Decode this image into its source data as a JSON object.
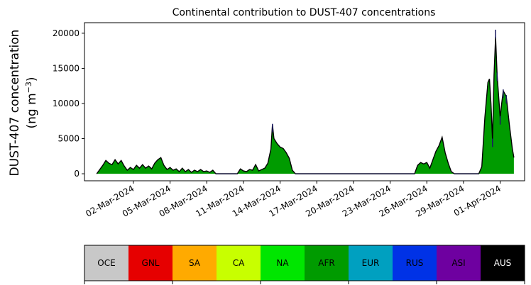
{
  "chart_data": {
    "type": "area",
    "title": "Continental contribution to DUST-407 concentrations",
    "ylabel_line1": "DUST-407 concentration",
    "ylabel_line2": "(ng m",
    "ylabel_sup": "−3",
    "ylabel_close": ")",
    "xlabel": "",
    "x_start": "2024-02-28",
    "xlim": [
      "2024-02-27",
      "2024-04-03"
    ],
    "ylim": [
      -1000,
      21500
    ],
    "yticks": [
      0,
      5000,
      10000,
      15000,
      20000
    ],
    "xtick_labels": [
      "02-Mar-2024",
      "05-Mar-2024",
      "08-Mar-2024",
      "11-Mar-2024",
      "14-Mar-2024",
      "17-Mar-2024",
      "20-Mar-2024",
      "23-Mar-2024",
      "26-Mar-2024",
      "29-Mar-2024",
      "01-Apr-2024"
    ],
    "xtick_dates": [
      "2024-03-02",
      "2024-03-05",
      "2024-03-08",
      "2024-03-11",
      "2024-03-14",
      "2024-03-17",
      "2024-03-20",
      "2024-03-23",
      "2024-03-26",
      "2024-03-29",
      "2024-04-01"
    ],
    "series": [
      {
        "name": "AFR",
        "color": "#009b00",
        "points": [
          [
            "2024-02-28T00:00",
            0
          ],
          [
            "2024-02-28T12:00",
            1200
          ],
          [
            "2024-02-28T18:00",
            1900
          ],
          [
            "2024-02-29T00:00",
            1500
          ],
          [
            "2024-02-29T06:00",
            1300
          ],
          [
            "2024-02-29T12:00",
            2000
          ],
          [
            "2024-02-29T18:00",
            1400
          ],
          [
            "2024-03-01T00:00",
            1900
          ],
          [
            "2024-03-01T06:00",
            1100
          ],
          [
            "2024-03-01T12:00",
            500
          ],
          [
            "2024-03-01T18:00",
            900
          ],
          [
            "2024-03-02T00:00",
            600
          ],
          [
            "2024-03-02T06:00",
            1200
          ],
          [
            "2024-03-02T12:00",
            800
          ],
          [
            "2024-03-02T18:00",
            1300
          ],
          [
            "2024-03-03T00:00",
            800
          ],
          [
            "2024-03-03T06:00",
            1100
          ],
          [
            "2024-03-03T12:00",
            700
          ],
          [
            "2024-03-03T18:00",
            1500
          ],
          [
            "2024-03-04T00:00",
            2000
          ],
          [
            "2024-03-04T06:00",
            2300
          ],
          [
            "2024-03-04T12:00",
            1200
          ],
          [
            "2024-03-04T18:00",
            600
          ],
          [
            "2024-03-05T00:00",
            900
          ],
          [
            "2024-03-05T06:00",
            500
          ],
          [
            "2024-03-05T12:00",
            700
          ],
          [
            "2024-03-05T18:00",
            300
          ],
          [
            "2024-03-06T00:00",
            800
          ],
          [
            "2024-03-06T06:00",
            300
          ],
          [
            "2024-03-06T12:00",
            600
          ],
          [
            "2024-03-06T18:00",
            200
          ],
          [
            "2024-03-07T00:00",
            500
          ],
          [
            "2024-03-07T06:00",
            300
          ],
          [
            "2024-03-07T12:00",
            600
          ],
          [
            "2024-03-07T18:00",
            300
          ],
          [
            "2024-03-08T00:00",
            400
          ],
          [
            "2024-03-08T06:00",
            200
          ],
          [
            "2024-03-08T12:00",
            500
          ],
          [
            "2024-03-08T18:00",
            0
          ],
          [
            "2024-03-09T00:00",
            0
          ],
          [
            "2024-03-10T12:00",
            0
          ],
          [
            "2024-03-10T18:00",
            700
          ],
          [
            "2024-03-11T00:00",
            400
          ],
          [
            "2024-03-11T06:00",
            300
          ],
          [
            "2024-03-11T12:00",
            600
          ],
          [
            "2024-03-11T18:00",
            500
          ],
          [
            "2024-03-12T00:00",
            1300
          ],
          [
            "2024-03-12T06:00",
            400
          ],
          [
            "2024-03-12T12:00",
            600
          ],
          [
            "2024-03-12T18:00",
            800
          ],
          [
            "2024-03-13T00:00",
            1500
          ],
          [
            "2024-03-13T06:00",
            3500
          ],
          [
            "2024-03-13T09:00",
            7000
          ],
          [
            "2024-03-13T12:00",
            5000
          ],
          [
            "2024-03-13T18:00",
            4300
          ],
          [
            "2024-03-14T00:00",
            3800
          ],
          [
            "2024-03-14T06:00",
            3600
          ],
          [
            "2024-03-14T12:00",
            3000
          ],
          [
            "2024-03-14T18:00",
            2200
          ],
          [
            "2024-03-15T00:00",
            500
          ],
          [
            "2024-03-15T06:00",
            0
          ],
          [
            "2024-03-25T00:00",
            0
          ],
          [
            "2024-03-25T06:00",
            1200
          ],
          [
            "2024-03-25T12:00",
            1600
          ],
          [
            "2024-03-25T18:00",
            1400
          ],
          [
            "2024-03-26T00:00",
            1600
          ],
          [
            "2024-03-26T06:00",
            800
          ],
          [
            "2024-03-26T12:00",
            2000
          ],
          [
            "2024-03-26T18:00",
            3200
          ],
          [
            "2024-03-27T00:00",
            4000
          ],
          [
            "2024-03-27T06:00",
            5200
          ],
          [
            "2024-03-27T12:00",
            3000
          ],
          [
            "2024-03-27T18:00",
            1500
          ],
          [
            "2024-03-28T00:00",
            300
          ],
          [
            "2024-03-28T06:00",
            0
          ],
          [
            "2024-03-30T06:00",
            0
          ],
          [
            "2024-03-30T12:00",
            1000
          ],
          [
            "2024-03-30T18:00",
            8000
          ],
          [
            "2024-03-31T00:00",
            13000
          ],
          [
            "2024-03-31T03:00",
            13500
          ],
          [
            "2024-03-31T06:00",
            10000
          ],
          [
            "2024-03-31T09:00",
            4800
          ],
          [
            "2024-03-31T12:00",
            14000
          ],
          [
            "2024-03-31T15:00",
            19500
          ],
          [
            "2024-03-31T18:00",
            14000
          ],
          [
            "2024-04-01T00:00",
            8000
          ],
          [
            "2024-04-01T03:00",
            10000
          ],
          [
            "2024-04-01T06:00",
            11800
          ],
          [
            "2024-04-01T12:00",
            11000
          ],
          [
            "2024-04-01T18:00",
            7000
          ],
          [
            "2024-04-02T00:00",
            3500
          ],
          [
            "2024-04-02T03:00",
            2300
          ]
        ]
      },
      {
        "name": "EUR",
        "color": "#00a0c0",
        "points": [
          [
            "2024-03-13T09:00",
            7100
          ],
          [
            "2024-03-31T09:00",
            5000
          ],
          [
            "2024-03-31T15:00",
            20500
          ],
          [
            "2024-03-31T18:00",
            14400
          ],
          [
            "2024-04-01T00:00",
            8200
          ],
          [
            "2024-04-01T06:00",
            12000
          ],
          [
            "2024-04-01T12:00",
            11200
          ]
        ]
      }
    ],
    "legend": [
      {
        "label": "OCE",
        "bg": "#c8c8c8",
        "fg": "#000000"
      },
      {
        "label": "GNL",
        "bg": "#e60000",
        "fg": "#000000"
      },
      {
        "label": "SA",
        "bg": "#ffaa00",
        "fg": "#000000"
      },
      {
        "label": "CA",
        "bg": "#c8ff00",
        "fg": "#000000"
      },
      {
        "label": "NA",
        "bg": "#00e600",
        "fg": "#000000"
      },
      {
        "label": "AFR",
        "bg": "#009b00",
        "fg": "#000000"
      },
      {
        "label": "EUR",
        "bg": "#00a0c0",
        "fg": "#000000"
      },
      {
        "label": "RUS",
        "bg": "#0032e6",
        "fg": "#000000"
      },
      {
        "label": "ASI",
        "bg": "#6e00a0",
        "fg": "#000000"
      },
      {
        "label": "AUS",
        "bg": "#000000",
        "fg": "#ffffff"
      }
    ],
    "legend_placement": "bottom",
    "grid": false,
    "colors": {
      "outline": "#000000",
      "baseline": "#1a1a40"
    }
  }
}
